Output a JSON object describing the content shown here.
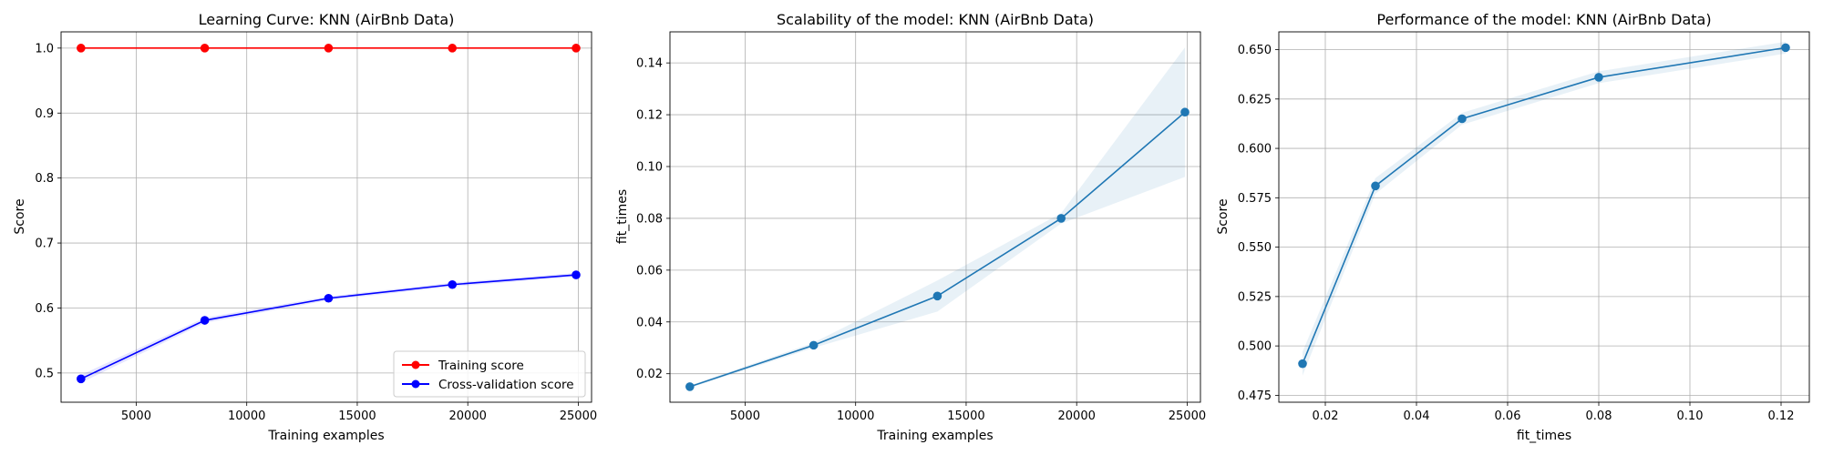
{
  "chart_data": [
    {
      "type": "line",
      "title": "Learning Curve: KNN (AirBnb Data)",
      "xlabel": "Training examples",
      "ylabel": "Score",
      "xlim": [
        1600,
        25600
      ],
      "ylim": [
        0.455,
        1.025
      ],
      "xticks": [
        5000,
        10000,
        15000,
        20000,
        25000
      ],
      "yticks": [
        0.5,
        0.6,
        0.7,
        0.8,
        0.9,
        1.0
      ],
      "xtick_labels": [
        "5000",
        "10000",
        "15000",
        "20000",
        "25000"
      ],
      "ytick_labels": [
        "0.5",
        "0.6",
        "0.7",
        "0.8",
        "0.9",
        "1.0"
      ],
      "grid": true,
      "legend": "lower-right",
      "x": [
        2500,
        8100,
        13700,
        19300,
        24900
      ],
      "series": [
        {
          "name": "Training score",
          "color": "#ff0000",
          "values": [
            1.0,
            1.0,
            1.0,
            1.0,
            1.0
          ],
          "band": [
            0,
            0,
            0,
            0,
            0
          ]
        },
        {
          "name": "Cross-validation score",
          "color": "#0000ff",
          "values": [
            0.491,
            0.581,
            0.615,
            0.636,
            0.651
          ],
          "band": [
            0.006,
            0.004,
            0.003,
            0.003,
            0.003
          ]
        }
      ]
    },
    {
      "type": "line",
      "title": "Scalability of the model: KNN (AirBnb Data)",
      "xlabel": "Training examples",
      "ylabel": "fit_times",
      "xlim": [
        1600,
        25600
      ],
      "ylim": [
        0.009,
        0.152
      ],
      "xticks": [
        5000,
        10000,
        15000,
        20000,
        25000
      ],
      "yticks": [
        0.02,
        0.04,
        0.06,
        0.08,
        0.1,
        0.12,
        0.14
      ],
      "xtick_labels": [
        "5000",
        "10000",
        "15000",
        "20000",
        "25000"
      ],
      "ytick_labels": [
        "0.02",
        "0.04",
        "0.06",
        "0.08",
        "0.10",
        "0.12",
        "0.14"
      ],
      "grid": true,
      "x": [
        2500,
        8100,
        13700,
        19300,
        24900
      ],
      "series": [
        {
          "color": "#1f77b4",
          "values": [
            0.015,
            0.031,
            0.05,
            0.08,
            0.121
          ],
          "band": [
            0.0005,
            0.001,
            0.006,
            0.002,
            0.025
          ]
        }
      ]
    },
    {
      "type": "line",
      "title": "Performance of the model: KNN (AirBnb Data)",
      "xlabel": "fit_times",
      "ylabel": "Score",
      "xlim": [
        0.0098,
        0.1262
      ],
      "ylim": [
        0.4715,
        0.659
      ],
      "xticks": [
        0.02,
        0.04,
        0.06,
        0.08,
        0.1,
        0.12
      ],
      "yticks": [
        0.475,
        0.5,
        0.525,
        0.55,
        0.575,
        0.6,
        0.625,
        0.65
      ],
      "xtick_labels": [
        "0.02",
        "0.04",
        "0.06",
        "0.08",
        "0.10",
        "0.12"
      ],
      "ytick_labels": [
        "0.475",
        "0.500",
        "0.525",
        "0.550",
        "0.575",
        "0.600",
        "0.625",
        "0.650"
      ],
      "grid": true,
      "x": [
        0.015,
        0.031,
        0.05,
        0.08,
        0.121
      ],
      "series": [
        {
          "color": "#1f77b4",
          "values": [
            0.491,
            0.581,
            0.615,
            0.636,
            0.651
          ],
          "band": [
            0.006,
            0.004,
            0.003,
            0.003,
            0.003
          ]
        }
      ]
    }
  ]
}
